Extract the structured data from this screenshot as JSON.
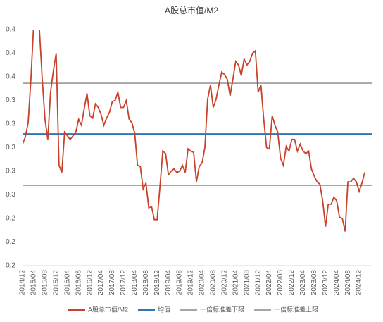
{
  "chart_data": {
    "type": "line",
    "title": "A股总市值/M2",
    "categories": [
      "2014/12",
      null,
      null,
      null,
      "2015/04",
      null,
      null,
      null,
      "2015/08",
      null,
      null,
      null,
      "2015/12",
      null,
      null,
      null,
      "2016/04",
      null,
      null,
      null,
      "2016/08",
      null,
      null,
      null,
      "2016/12",
      null,
      null,
      null,
      "2017/04",
      null,
      null,
      null,
      "2017/08",
      null,
      null,
      null,
      "2017/12",
      null,
      null,
      null,
      "2018/04",
      null,
      null,
      null,
      "2018/08",
      null,
      null,
      null,
      "2018/12",
      null,
      null,
      null,
      "2019/04",
      null,
      null,
      null,
      "2019/08",
      null,
      null,
      null,
      "2019/12",
      null,
      null,
      null,
      "2020/04",
      null,
      null,
      null,
      "2020/08",
      null,
      null,
      null,
      "2020/12",
      null,
      null,
      null,
      "2021/04",
      null,
      null,
      null,
      "2021/08",
      null,
      null,
      null,
      "2021/12",
      null,
      null,
      null,
      "2022/04",
      null,
      null,
      null,
      "2022/08",
      null,
      null,
      null,
      "2022/12",
      null,
      null,
      null,
      "2023/04",
      null,
      null,
      null,
      "2023/08",
      null,
      null,
      null,
      "2023/12",
      null,
      null,
      null,
      "2024/04",
      null,
      null,
      null,
      "2024/08",
      null,
      null,
      null,
      "2024/12",
      null,
      null
    ],
    "series": [
      {
        "name": "A股总市值/M2",
        "color": "#c8412a",
        "values": [
          0.303,
          0.309,
          0.321,
          0.359,
          0.405,
          0.41,
          0.401,
          0.359,
          0.324,
          0.307,
          0.347,
          0.365,
          0.38,
          0.285,
          0.279,
          0.313,
          0.31,
          0.307,
          0.31,
          0.313,
          0.324,
          0.319,
          0.333,
          0.346,
          0.327,
          0.325,
          0.337,
          0.334,
          0.328,
          0.319,
          0.325,
          0.33,
          0.339,
          0.34,
          0.347,
          0.334,
          0.334,
          0.34,
          0.324,
          0.321,
          0.312,
          0.285,
          0.284,
          0.265,
          0.27,
          0.249,
          0.25,
          0.239,
          0.239,
          0.267,
          0.297,
          0.295,
          0.277,
          0.28,
          0.282,
          0.279,
          0.28,
          0.285,
          0.279,
          0.299,
          0.297,
          0.296,
          0.271,
          0.284,
          0.287,
          0.3,
          0.341,
          0.353,
          0.334,
          0.341,
          0.353,
          0.364,
          0.362,
          0.358,
          0.344,
          0.358,
          0.373,
          0.37,
          0.361,
          0.375,
          0.37,
          0.373,
          0.38,
          0.382,
          0.347,
          0.353,
          0.324,
          0.3,
          0.299,
          0.327,
          0.319,
          0.313,
          0.291,
          0.285,
          0.301,
          0.297,
          0.307,
          0.307,
          0.297,
          0.303,
          0.297,
          0.295,
          0.297,
          0.282,
          0.276,
          0.271,
          0.269,
          0.255,
          0.233,
          0.252,
          0.252,
          0.258,
          0.255,
          0.241,
          0.24,
          0.229,
          0.271,
          0.271,
          0.274,
          0.271,
          0.263,
          0.27,
          0.279
        ]
      }
    ],
    "reference_lines": [
      {
        "name": "均值",
        "color": "#2e75b6",
        "value": 0.3116
      },
      {
        "name": "一倍标准差下限",
        "color": "#a6a6a6",
        "value": 0.268
      },
      {
        "name": "一倍标准差上限",
        "color": "#a6a6a6",
        "value": 0.3546
      }
    ],
    "ylim": [
      0.2,
      0.4
    ],
    "yticks": [
      {
        "value": 0.2,
        "label": "0.2"
      },
      {
        "value": 0.22,
        "label": "0.2"
      },
      {
        "value": 0.24,
        "label": "0.2"
      },
      {
        "value": 0.26,
        "label": "0.3"
      },
      {
        "value": 0.28,
        "label": "0.3"
      },
      {
        "value": 0.3,
        "label": "0.3"
      },
      {
        "value": 0.32,
        "label": "0.3"
      },
      {
        "value": 0.34,
        "label": "0.3"
      },
      {
        "value": 0.36,
        "label": "0.4"
      },
      {
        "value": 0.38,
        "label": "0.4"
      },
      {
        "value": 0.4,
        "label": "0.4"
      }
    ],
    "legend": "bottom"
  }
}
